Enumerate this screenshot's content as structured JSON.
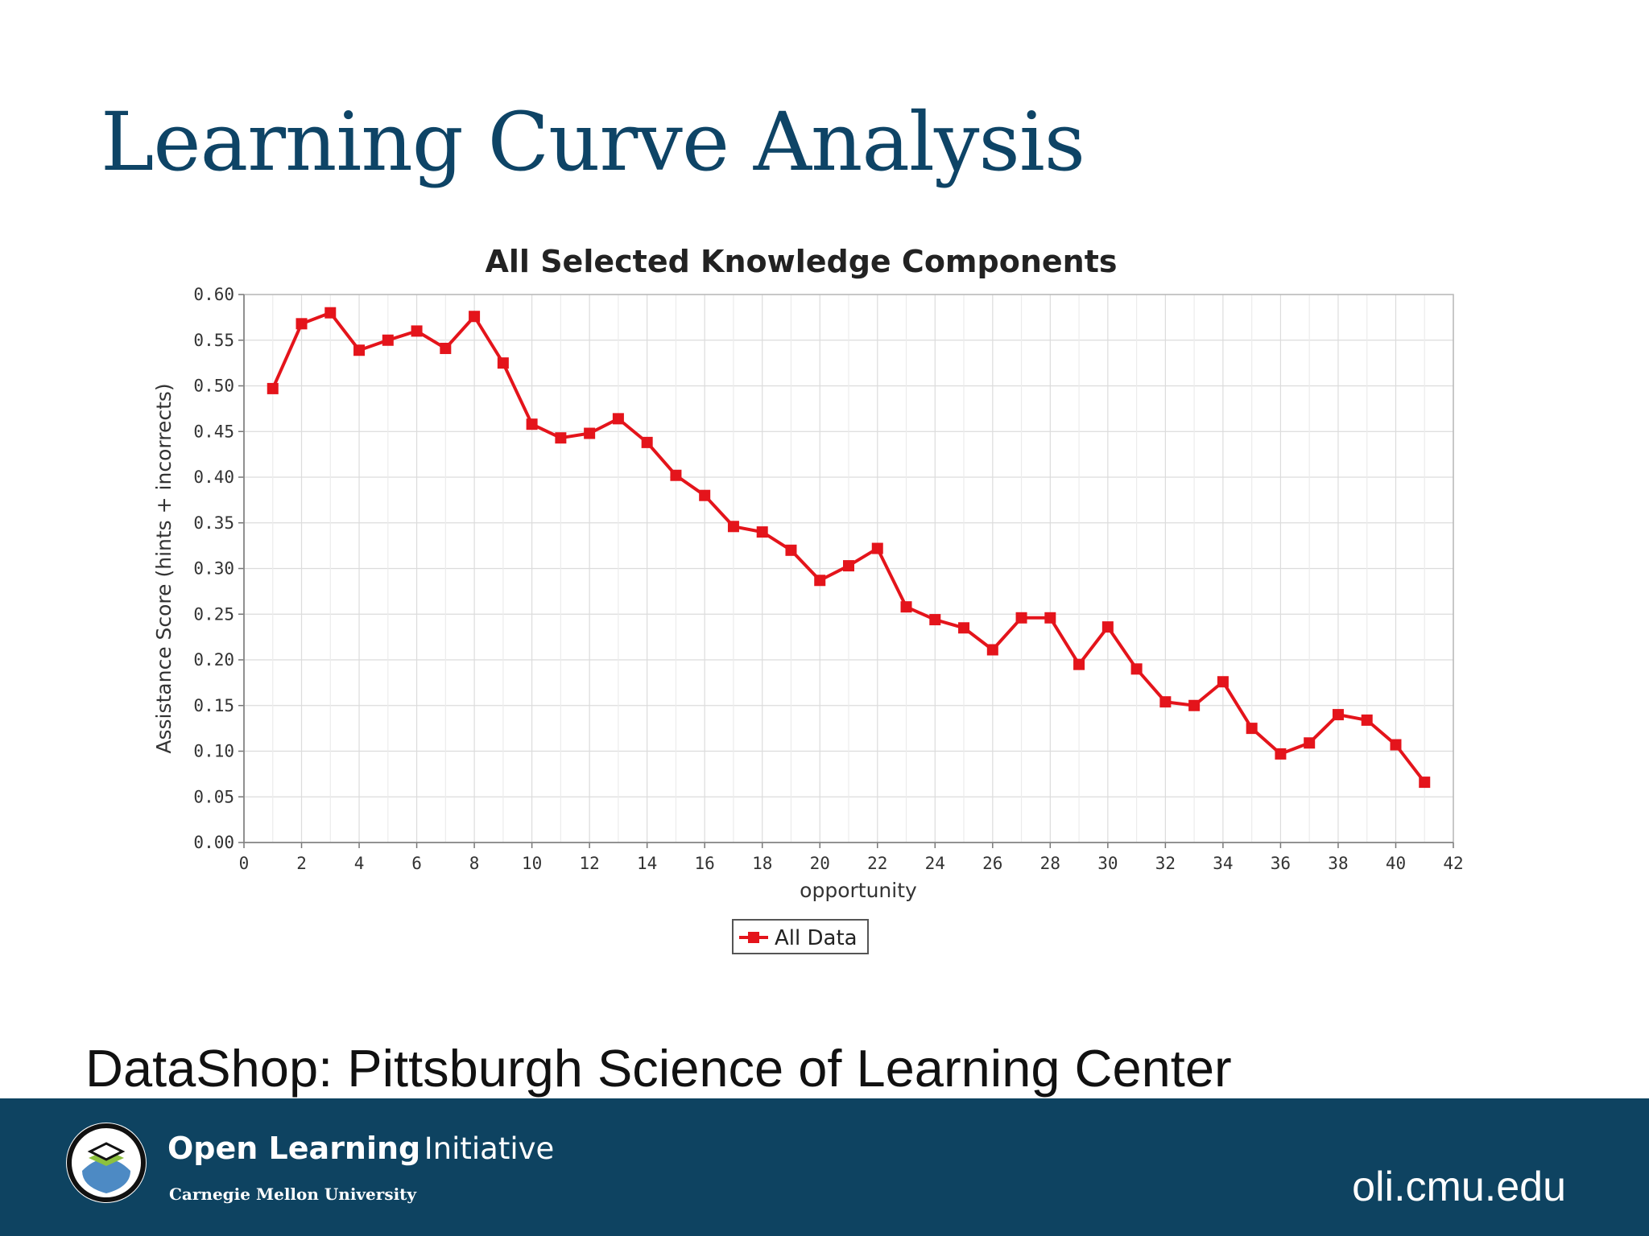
{
  "slide": {
    "title": "Learning Curve Analysis",
    "source_text": "DataShop:  Pittsburgh Science of Learning Center"
  },
  "footer": {
    "logo_bold": "Open Learning",
    "logo_light": "Initiative",
    "logo_sub": "Carnegie Mellon University",
    "url": "oli.cmu.edu",
    "background_color": "#0e4361",
    "logo_icon": "oli-logo-icon"
  },
  "colors": {
    "title": "#0e4466",
    "series": "#e4141b"
  },
  "chart_data": {
    "type": "line",
    "title": "All Selected Knowledge Components",
    "xlabel": "opportunity",
    "ylabel": "Assistance Score (hints + incorrects)",
    "xlim": [
      0,
      42
    ],
    "ylim": [
      0,
      0.6
    ],
    "xticks": [
      "0",
      "2",
      "4",
      "6",
      "8",
      "10",
      "12",
      "14",
      "16",
      "18",
      "20",
      "22",
      "24",
      "26",
      "28",
      "30",
      "32",
      "34",
      "36",
      "38",
      "40",
      "42"
    ],
    "yticks": [
      "0.00",
      "0.05",
      "0.10",
      "0.15",
      "0.20",
      "0.25",
      "0.30",
      "0.35",
      "0.40",
      "0.45",
      "0.50",
      "0.55",
      "0.60"
    ],
    "grid": true,
    "legend_position": "bottom",
    "series": [
      {
        "name": "All Data",
        "color": "#e4141b",
        "marker": "square",
        "x": [
          1,
          2,
          3,
          4,
          5,
          6,
          7,
          8,
          9,
          10,
          11,
          12,
          13,
          14,
          15,
          16,
          17,
          18,
          19,
          20,
          21,
          22,
          23,
          24,
          25,
          26,
          27,
          28,
          29,
          30,
          31,
          32,
          33,
          34,
          35,
          36,
          37,
          38,
          39,
          40,
          41
        ],
        "y": [
          0.497,
          0.568,
          0.58,
          0.539,
          0.55,
          0.56,
          0.541,
          0.576,
          0.525,
          0.458,
          0.443,
          0.448,
          0.464,
          0.438,
          0.402,
          0.38,
          0.346,
          0.34,
          0.32,
          0.287,
          0.303,
          0.322,
          0.258,
          0.244,
          0.235,
          0.211,
          0.246,
          0.246,
          0.195,
          0.236,
          0.19,
          0.154,
          0.15,
          0.176,
          0.125,
          0.097,
          0.109,
          0.14,
          0.134,
          0.107,
          0.066
        ]
      }
    ]
  }
}
